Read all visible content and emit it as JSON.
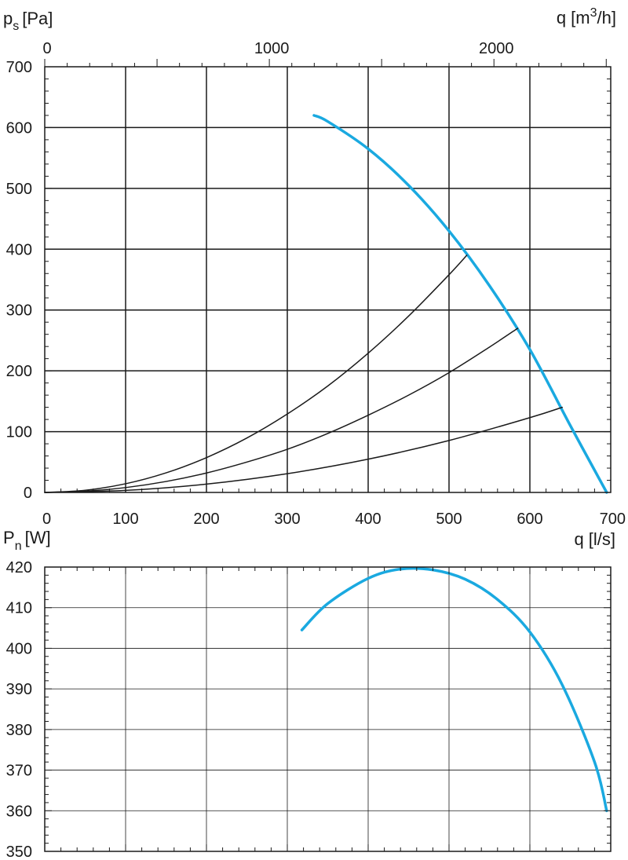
{
  "chart_data": [
    {
      "type": "line",
      "ylabel": {
        "symbol": "p",
        "subscript": "s",
        "unit": "[Pa]"
      },
      "xlabel": {
        "symbol": "q",
        "unit": "[l/s]"
      },
      "x2label": {
        "symbol": "q",
        "unit_prefix": "[m",
        "unit_sup": "3",
        "unit_suffix": "/h]"
      },
      "xlim": [
        0,
        700
      ],
      "ylim": [
        0,
        700
      ],
      "x_ticks": [
        "0",
        "100",
        "200",
        "300",
        "400",
        "500",
        "600",
        "700"
      ],
      "y_ticks": [
        "0",
        "100",
        "200",
        "300",
        "400",
        "500",
        "600",
        "700"
      ],
      "x2_ticks": [
        {
          "label": "0",
          "value": 0
        },
        {
          "label": "1000",
          "value": 1000
        },
        {
          "label": "2000",
          "value": 2000
        }
      ],
      "grid": true,
      "fan_curve_color": "#1aa9e0",
      "series": [
        {
          "role": "fan-curve",
          "x": [
            333,
            350,
            400,
            450,
            500,
            550,
            600,
            650,
            695
          ],
          "y": [
            620,
            610,
            565,
            505,
            430,
            340,
            235,
            110,
            0
          ]
        },
        {
          "role": "system-curve",
          "x": [
            0,
            50,
            100,
            150,
            200,
            250,
            300,
            350,
            400,
            450,
            500,
            522
          ],
          "y": [
            0,
            3.6,
            14.3,
            32.2,
            57.3,
            89.5,
            129,
            175,
            229,
            290,
            358,
            390
          ]
        },
        {
          "role": "system-curve",
          "x": [
            0,
            50,
            100,
            150,
            200,
            250,
            300,
            350,
            400,
            450,
            500,
            550,
            585
          ],
          "y": [
            0,
            2,
            8,
            18,
            32,
            50,
            71,
            97,
            127,
            160,
            197,
            239,
            270
          ]
        },
        {
          "role": "system-curve",
          "x": [
            0,
            100,
            200,
            300,
            400,
            500,
            600,
            640
          ],
          "y": [
            0,
            3.4,
            13.7,
            30.8,
            54.7,
            85.4,
            123,
            140
          ]
        }
      ]
    },
    {
      "type": "line",
      "ylabel": {
        "symbol": "P",
        "subscript": "n",
        "unit": "[W]"
      },
      "xlim": [
        0,
        700
      ],
      "ylim": [
        350,
        420
      ],
      "y_ticks": [
        "350",
        "360",
        "370",
        "380",
        "390",
        "400",
        "410",
        "420"
      ],
      "grid": true,
      "fan_curve_color": "#1aa9e0",
      "series": [
        {
          "role": "power-curve",
          "x": [
            318,
            350,
            400,
            440,
            480,
            520,
            560,
            600,
            640,
            680,
            695
          ],
          "y": [
            404.5,
            411,
            417.2,
            419.5,
            419.3,
            417,
            412,
            404,
            391,
            372,
            360
          ]
        }
      ]
    }
  ]
}
